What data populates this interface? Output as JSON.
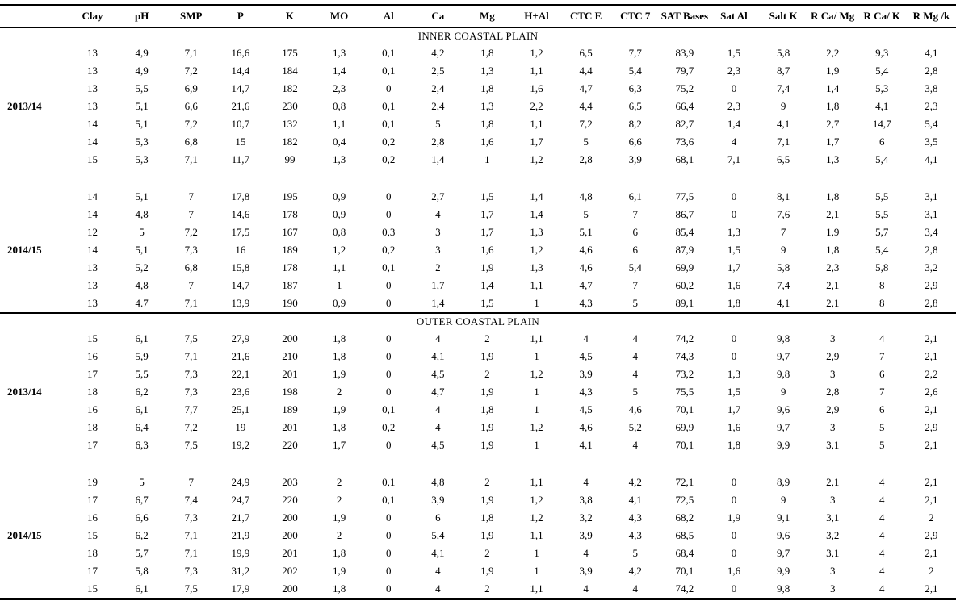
{
  "table": {
    "columns": [
      "Clay",
      "pH",
      "SMP",
      "P",
      "K",
      "MO",
      "Al",
      "Ca",
      "Mg",
      "H+Al",
      "CTC E",
      "CTC 7",
      "SAT Bases",
      "Sat Al",
      "Salt K",
      "R Ca/ Mg",
      "R Ca/ K",
      "R Mg /k"
    ],
    "year_row_index": 3,
    "sections": [
      {
        "title": "INNER COASTAL PLAIN",
        "groups": [
          {
            "year": "2013/14",
            "rows": [
              [
                "13",
                "4,9",
                "7,1",
                "16,6",
                "175",
                "1,3",
                "0,1",
                "4,2",
                "1,8",
                "1,2",
                "6,5",
                "7,7",
                "83,9",
                "1,5",
                "5,8",
                "2,2",
                "9,3",
                "4,1"
              ],
              [
                "13",
                "4,9",
                "7,2",
                "14,4",
                "184",
                "1,4",
                "0,1",
                "2,5",
                "1,3",
                "1,1",
                "4,4",
                "5,4",
                "79,7",
                "2,3",
                "8,7",
                "1,9",
                "5,4",
                "2,8"
              ],
              [
                "13",
                "5,5",
                "6,9",
                "14,7",
                "182",
                "2,3",
                "0",
                "2,4",
                "1,8",
                "1,6",
                "4,7",
                "6,3",
                "75,2",
                "0",
                "7,4",
                "1,4",
                "5,3",
                "3,8"
              ],
              [
                "13",
                "5,1",
                "6,6",
                "21,6",
                "230",
                "0,8",
                "0,1",
                "2,4",
                "1,3",
                "2,2",
                "4,4",
                "6,5",
                "66,4",
                "2,3",
                "9",
                "1,8",
                "4,1",
                "2,3"
              ],
              [
                "14",
                "5,1",
                "7,2",
                "10,7",
                "132",
                "1,1",
                "0,1",
                "5",
                "1,8",
                "1,1",
                "7,2",
                "8,2",
                "82,7",
                "1,4",
                "4,1",
                "2,7",
                "14,7",
                "5,4"
              ],
              [
                "14",
                "5,3",
                "6,8",
                "15",
                "182",
                "0,4",
                "0,2",
                "2,8",
                "1,6",
                "1,7",
                "5",
                "6,6",
                "73,6",
                "4",
                "7,1",
                "1,7",
                "6",
                "3,5"
              ],
              [
                "15",
                "5,3",
                "7,1",
                "11,7",
                "99",
                "1,3",
                "0,2",
                "1,4",
                "1",
                "1,2",
                "2,8",
                "3,9",
                "68,1",
                "7,1",
                "6,5",
                "1,3",
                "5,4",
                "4,1"
              ]
            ]
          },
          {
            "year": "2014/15",
            "rows": [
              [
                "14",
                "5,1",
                "7",
                "17,8",
                "195",
                "0,9",
                "0",
                "2,7",
                "1,5",
                "1,4",
                "4,8",
                "6,1",
                "77,5",
                "0",
                "8,1",
                "1,8",
                "5,5",
                "3,1"
              ],
              [
                "14",
                "4,8",
                "7",
                "14,6",
                "178",
                "0,9",
                "0",
                "4",
                "1,7",
                "1,4",
                "5",
                "7",
                "86,7",
                "0",
                "7,6",
                "2,1",
                "5,5",
                "3,1"
              ],
              [
                "12",
                "5",
                "7,2",
                "17,5",
                "167",
                "0,8",
                "0,3",
                "3",
                "1,7",
                "1,3",
                "5,1",
                "6",
                "85,4",
                "1,3",
                "7",
                "1,9",
                "5,7",
                "3,4"
              ],
              [
                "14",
                "5,1",
                "7,3",
                "16",
                "189",
                "1,2",
                "0,2",
                "3",
                "1,6",
                "1,2",
                "4,6",
                "6",
                "87,9",
                "1,5",
                "9",
                "1,8",
                "5,4",
                "2,8"
              ],
              [
                "13",
                "5,2",
                "6,8",
                "15,8",
                "178",
                "1,1",
                "0,1",
                "2",
                "1,9",
                "1,3",
                "4,6",
                "5,4",
                "69,9",
                "1,7",
                "5,8",
                "2,3",
                "5,8",
                "3,2"
              ],
              [
                "13",
                "4,8",
                "7",
                "14,7",
                "187",
                "1",
                "0",
                "1,7",
                "1,4",
                "1,1",
                "4,7",
                "7",
                "60,2",
                "1,6",
                "7,4",
                "2,1",
                "8",
                "2,9"
              ],
              [
                "13",
                "4.7",
                "7,1",
                "13,9",
                "190",
                "0,9",
                "0",
                "1,4",
                "1,5",
                "1",
                "4,3",
                "5",
                "89,1",
                "1,8",
                "4,1",
                "2,1",
                "8",
                "2,8"
              ]
            ]
          }
        ]
      },
      {
        "title": "OUTER COASTAL PLAIN",
        "groups": [
          {
            "year": "2013/14",
            "rows": [
              [
                "15",
                "6,1",
                "7,5",
                "27,9",
                "200",
                "1,8",
                "0",
                "4",
                "2",
                "1,1",
                "4",
                "4",
                "74,2",
                "0",
                "9,8",
                "3",
                "4",
                "2,1"
              ],
              [
                "16",
                "5,9",
                "7,1",
                "21,6",
                "210",
                "1,8",
                "0",
                "4,1",
                "1,9",
                "1",
                "4,5",
                "4",
                "74,3",
                "0",
                "9,7",
                "2,9",
                "7",
                "2,1"
              ],
              [
                "17",
                "5,5",
                "7,3",
                "22,1",
                "201",
                "1,9",
                "0",
                "4,5",
                "2",
                "1,2",
                "3,9",
                "4",
                "73,2",
                "1,3",
                "9,8",
                "3",
                "6",
                "2,2"
              ],
              [
                "18",
                "6,2",
                "7,3",
                "23,6",
                "198",
                "2",
                "0",
                "4,7",
                "1,9",
                "1",
                "4,3",
                "5",
                "75,5",
                "1,5",
                "9",
                "2,8",
                "7",
                "2,6"
              ],
              [
                "16",
                "6,1",
                "7,7",
                "25,1",
                "189",
                "1,9",
                "0,1",
                "4",
                "1,8",
                "1",
                "4,5",
                "4,6",
                "70,1",
                "1,7",
                "9,6",
                "2,9",
                "6",
                "2,1"
              ],
              [
                "18",
                "6,4",
                "7,2",
                "19",
                "201",
                "1,8",
                "0,2",
                "4",
                "1,9",
                "1,2",
                "4,6",
                "5,2",
                "69,9",
                "1,6",
                "9,7",
                "3",
                "5",
                "2,9"
              ],
              [
                "17",
                "6,3",
                "7,5",
                "19,2",
                "220",
                "1,7",
                "0",
                "4,5",
                "1,9",
                "1",
                "4,1",
                "4",
                "70,1",
                "1,8",
                "9,9",
                "3,1",
                "5",
                "2,1"
              ]
            ]
          },
          {
            "year": "2014/15",
            "rows": [
              [
                "19",
                "5",
                "7",
                "24,9",
                "203",
                "2",
                "0,1",
                "4,8",
                "2",
                "1,1",
                "4",
                "4,2",
                "72,1",
                "0",
                "8,9",
                "2,1",
                "4",
                "2,1"
              ],
              [
                "17",
                "6,7",
                "7,4",
                "24,7",
                "220",
                "2",
                "0,1",
                "3,9",
                "1,9",
                "1,2",
                "3,8",
                "4,1",
                "72,5",
                "0",
                "9",
                "3",
                "4",
                "2,1"
              ],
              [
                "16",
                "6,6",
                "7,3",
                "21,7",
                "200",
                "1,9",
                "0",
                "6",
                "1,8",
                "1,2",
                "3,2",
                "4,3",
                "68,2",
                "1,9",
                "9,1",
                "3,1",
                "4",
                "2"
              ],
              [
                "15",
                "6,2",
                "7,1",
                "21,9",
                "200",
                "2",
                "0",
                "5,4",
                "1,9",
                "1,1",
                "3,9",
                "4,3",
                "68,5",
                "0",
                "9,6",
                "3,2",
                "4",
                "2,9"
              ],
              [
                "18",
                "5,7",
                "7,1",
                "19,9",
                "201",
                "1,8",
                "0",
                "4,1",
                "2",
                "1",
                "4",
                "5",
                "68,4",
                "0",
                "9,7",
                "3,1",
                "4",
                "2,1"
              ],
              [
                "17",
                "5,8",
                "7,3",
                "31,2",
                "202",
                "1,9",
                "0",
                "4",
                "1,9",
                "1",
                "3,9",
                "4,2",
                "70,1",
                "1,6",
                "9,9",
                "3",
                "4",
                "2"
              ],
              [
                "15",
                "6,1",
                "7,5",
                "17,9",
                "200",
                "1,8",
                "0",
                "4",
                "2",
                "1,1",
                "4",
                "4",
                "74,2",
                "0",
                "9,8",
                "3",
                "4",
                "2,1"
              ]
            ]
          }
        ]
      }
    ]
  }
}
